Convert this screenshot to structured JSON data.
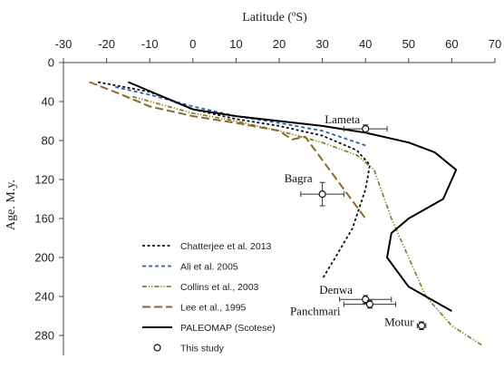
{
  "chart_data": {
    "type": "line",
    "xlabel": "Latitude (ºS)",
    "ylabel": "Age. M.y.",
    "xlim": [
      -30,
      70
    ],
    "ylim": [
      0,
      280
    ],
    "y_inverted": true,
    "x_axis_position": "top",
    "xticks": [
      -30,
      -20,
      -10,
      0,
      10,
      20,
      30,
      40,
      50,
      60,
      70
    ],
    "yticks": [
      0,
      40,
      80,
      120,
      160,
      200,
      240,
      280
    ],
    "grid": false,
    "legend_position": "bottom-left",
    "series": [
      {
        "name": "Chatterjee et al. 2013",
        "color": "#111111",
        "dash": "short",
        "points": [
          [
            -22,
            20
          ],
          [
            -10,
            30
          ],
          [
            0,
            48
          ],
          [
            10,
            58
          ],
          [
            20,
            65
          ],
          [
            30,
            75
          ],
          [
            38,
            90
          ],
          [
            41,
            105
          ],
          [
            40,
            130
          ],
          [
            37,
            170
          ],
          [
            33,
            200
          ],
          [
            30,
            222
          ]
        ]
      },
      {
        "name": "Ali et al. 2005",
        "color": "#2e5fb5",
        "dash": "dash",
        "points": [
          [
            -18,
            25
          ],
          [
            -10,
            33
          ],
          [
            0,
            45
          ],
          [
            10,
            55
          ],
          [
            20,
            62
          ],
          [
            30,
            70
          ],
          [
            40,
            85
          ]
        ]
      },
      {
        "name": "Collins et al., 2003",
        "color": "#8b7a2a",
        "dash": "dashdotdot",
        "points": [
          [
            -14,
            35
          ],
          [
            0,
            52
          ],
          [
            10,
            60
          ],
          [
            20,
            70
          ],
          [
            30,
            82
          ],
          [
            38,
            95
          ],
          [
            42,
            110
          ],
          [
            46,
            160
          ],
          [
            50,
            200
          ],
          [
            54,
            240
          ],
          [
            60,
            270
          ],
          [
            67,
            290
          ]
        ]
      },
      {
        "name": "Lee et al., 1995",
        "color": "#8b6a2e",
        "dash": "longdash",
        "points": [
          [
            -24,
            20
          ],
          [
            -17,
            32
          ],
          [
            -10,
            45
          ],
          [
            0,
            55
          ],
          [
            10,
            62
          ],
          [
            20,
            70
          ],
          [
            23,
            79
          ],
          [
            26,
            76
          ],
          [
            30,
            100
          ],
          [
            35,
            130
          ],
          [
            40,
            160
          ]
        ]
      },
      {
        "name": "PALEOMAP (Scotese)",
        "color": "#000000",
        "dash": "solid",
        "points": [
          [
            -15,
            20
          ],
          [
            -8,
            33
          ],
          [
            0,
            48
          ],
          [
            10,
            55
          ],
          [
            20,
            60
          ],
          [
            30,
            65
          ],
          [
            40,
            72
          ],
          [
            50,
            82
          ],
          [
            56,
            92
          ],
          [
            61,
            110
          ],
          [
            58,
            140
          ],
          [
            50,
            160
          ],
          [
            46,
            175
          ],
          [
            45,
            200
          ],
          [
            50,
            230
          ],
          [
            60,
            255
          ]
        ]
      }
    ],
    "this_study": {
      "name": "This study",
      "points": [
        {
          "label": "Lameta",
          "x": 40,
          "y": 68,
          "xerr": 5,
          "yerr": 4
        },
        {
          "label": "Bagra",
          "x": 30,
          "y": 135,
          "xerr": 5,
          "yerr": 12
        },
        {
          "label": "Denwa",
          "x": 40,
          "y": 243,
          "xerr": 6,
          "yerr": 4
        },
        {
          "label": "Panchmari",
          "x": 41,
          "y": 248,
          "xerr": 6,
          "yerr": 4
        },
        {
          "label": "Motur",
          "x": 53,
          "y": 270,
          "xerr": 1,
          "yerr": 4
        }
      ]
    }
  }
}
